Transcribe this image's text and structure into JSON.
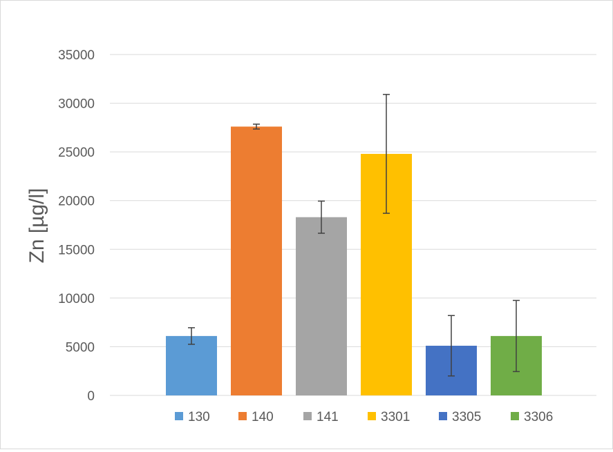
{
  "chart_data": {
    "type": "bar",
    "title": "",
    "xlabel": "",
    "ylabel": "Zn [µg/l]",
    "ylim": [
      0,
      35000
    ],
    "yticks": [
      0,
      5000,
      10000,
      15000,
      20000,
      25000,
      30000,
      35000
    ],
    "grid": true,
    "legend_position": "bottom",
    "series": [
      {
        "name": "130",
        "value": 6100,
        "error": 850,
        "color": "#5B9BD5"
      },
      {
        "name": "140",
        "value": 27600,
        "error": 250,
        "color": "#ED7D31"
      },
      {
        "name": "141",
        "value": 18300,
        "error": 1650,
        "color": "#A5A5A5"
      },
      {
        "name": "3301",
        "value": 24800,
        "error": 6100,
        "color": "#FFC000"
      },
      {
        "name": "3305",
        "value": 5100,
        "error": 3100,
        "color": "#4472C4"
      },
      {
        "name": "3306",
        "value": 6100,
        "error": 3650,
        "color": "#70AD47"
      }
    ]
  }
}
